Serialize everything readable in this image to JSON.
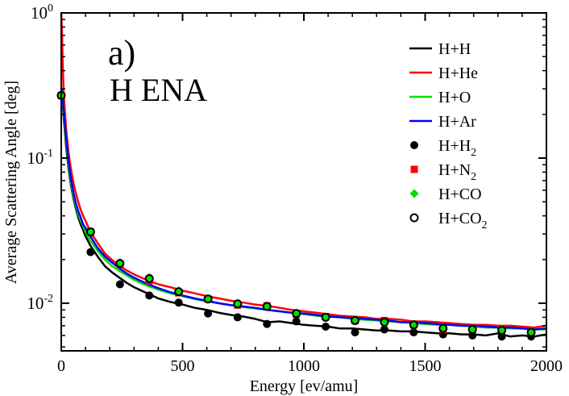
{
  "chart_data": {
    "type": "line",
    "title": "",
    "panel_label": "a)",
    "annotation": "H ENA",
    "xlabel": "Energy [ev/amu]",
    "ylabel": "Average Scattering Angle [deg]",
    "xlim": [
      0,
      2000
    ],
    "ylim": [
      0.0047,
      1.0
    ],
    "yscale": "log",
    "xticks": [
      0,
      500,
      1000,
      1500,
      2000
    ],
    "xtick_labels": [
      "0",
      "500",
      "1000",
      "1500",
      "2000"
    ],
    "yticks": [
      1.0,
      0.1,
      0.01
    ],
    "ytick_labels": [
      {
        "base": "10",
        "exp": "0"
      },
      {
        "base": "10",
        "exp": "-1"
      },
      {
        "base": "10",
        "exp": "-2"
      }
    ],
    "grid": false,
    "legend_position": "top-right",
    "series": [
      {
        "name": "H+H",
        "label_main": "H+H",
        "label_sub": "",
        "label_tail": "",
        "kind": "line",
        "color": "#000000",
        "x": [
          0,
          5,
          10,
          20,
          30,
          40,
          50,
          60,
          70,
          80,
          90,
          100,
          120,
          150,
          180,
          210,
          240,
          270,
          300,
          350,
          400,
          450,
          500,
          550,
          600,
          650,
          700,
          750,
          800,
          850,
          900,
          950,
          1000,
          1050,
          1100,
          1150,
          1200,
          1250,
          1300,
          1350,
          1400,
          1450,
          1500,
          1550,
          1600,
          1650,
          1700,
          1750,
          1800,
          1850,
          1900,
          1950,
          2000
        ],
        "y": [
          0.3,
          0.27,
          0.19,
          0.12,
          0.085,
          0.065,
          0.053,
          0.045,
          0.039,
          0.035,
          0.032,
          0.029,
          0.025,
          0.021,
          0.018,
          0.0163,
          0.015,
          0.0138,
          0.0129,
          0.0118,
          0.0108,
          0.0102,
          0.0098,
          0.0093,
          0.009,
          0.0086,
          0.0083,
          0.0081,
          0.0078,
          0.0074,
          0.0075,
          0.0073,
          0.0071,
          0.007,
          0.0069,
          0.0067,
          0.0067,
          0.0066,
          0.0065,
          0.0065,
          0.0064,
          0.0064,
          0.0063,
          0.0062,
          0.0062,
          0.0061,
          0.0061,
          0.006,
          0.0062,
          0.0059,
          0.006,
          0.0059,
          0.0061
        ]
      },
      {
        "name": "H+He",
        "label_main": "H+He",
        "label_sub": "",
        "label_tail": "",
        "kind": "line",
        "color": "#ff0000",
        "x": [
          0,
          3,
          6,
          10,
          20,
          30,
          40,
          50,
          60,
          70,
          80,
          90,
          100,
          120,
          150,
          180,
          210,
          240,
          270,
          300,
          350,
          400,
          450,
          500,
          550,
          600,
          650,
          700,
          750,
          800,
          850,
          900,
          950,
          1000,
          1050,
          1100,
          1150,
          1200,
          1250,
          1300,
          1350,
          1400,
          1450,
          1500,
          1550,
          1600,
          1650,
          1700,
          1750,
          1800,
          1850,
          1900,
          1950,
          2000
        ],
        "y": [
          1.0,
          0.75,
          0.45,
          0.28,
          0.16,
          0.11,
          0.084,
          0.068,
          0.057,
          0.05,
          0.044,
          0.04,
          0.037,
          0.031,
          0.026,
          0.022,
          0.0198,
          0.0182,
          0.0168,
          0.0158,
          0.0145,
          0.0135,
          0.0129,
          0.0122,
          0.0117,
          0.0112,
          0.0108,
          0.0104,
          0.0101,
          0.0098,
          0.0096,
          0.0093,
          0.009,
          0.0088,
          0.0086,
          0.0084,
          0.0082,
          0.0081,
          0.008,
          0.0078,
          0.0078,
          0.0077,
          0.0075,
          0.0075,
          0.0074,
          0.0073,
          0.0072,
          0.0071,
          0.0071,
          0.007,
          0.007,
          0.0069,
          0.0068,
          0.007
        ]
      },
      {
        "name": "H+O",
        "label_main": "H+O",
        "label_sub": "",
        "label_tail": "",
        "kind": "line",
        "color": "#00e000",
        "x": [
          0,
          5,
          10,
          20,
          30,
          40,
          50,
          60,
          70,
          80,
          90,
          100,
          120,
          150,
          180,
          210,
          240,
          270,
          300,
          350,
          400,
          450,
          500,
          550,
          600,
          650,
          700,
          750,
          800,
          850,
          900,
          950,
          1000,
          1050,
          1100,
          1150,
          1200,
          1250,
          1300,
          1350,
          1400,
          1450,
          1500,
          1550,
          1600,
          1650,
          1700,
          1750,
          1800,
          1850,
          1900,
          1950,
          2000
        ],
        "y": [
          0.3,
          0.28,
          0.2,
          0.13,
          0.09,
          0.068,
          0.055,
          0.047,
          0.041,
          0.037,
          0.034,
          0.031,
          0.027,
          0.023,
          0.02,
          0.018,
          0.0167,
          0.0155,
          0.0145,
          0.0133,
          0.0124,
          0.0117,
          0.0112,
          0.0107,
          0.0103,
          0.01,
          0.0097,
          0.0094,
          0.0092,
          0.009,
          0.0088,
          0.0086,
          0.0084,
          0.0082,
          0.0081,
          0.008,
          0.0078,
          0.0077,
          0.0076,
          0.0075,
          0.0074,
          0.0073,
          0.0072,
          0.0071,
          0.0071,
          0.007,
          0.0069,
          0.0068,
          0.0068,
          0.0067,
          0.0067,
          0.0066,
          0.0066
        ]
      },
      {
        "name": "H+Ar",
        "label_main": "H+Ar",
        "label_sub": "",
        "label_tail": "",
        "kind": "line",
        "color": "#0000ff",
        "x": [
          0,
          5,
          10,
          20,
          30,
          40,
          50,
          60,
          70,
          80,
          90,
          100,
          120,
          150,
          180,
          210,
          240,
          270,
          300,
          350,
          400,
          450,
          500,
          550,
          600,
          650,
          700,
          750,
          800,
          850,
          900,
          950,
          1000,
          1050,
          1100,
          1150,
          1200,
          1250,
          1300,
          1350,
          1400,
          1450,
          1500,
          1550,
          1600,
          1650,
          1700,
          1750,
          1800,
          1850,
          1900,
          1950,
          2000
        ],
        "y": [
          0.3,
          0.28,
          0.21,
          0.14,
          0.095,
          0.072,
          0.058,
          0.049,
          0.043,
          0.039,
          0.035,
          0.033,
          0.029,
          0.024,
          0.021,
          0.019,
          0.0174,
          0.016,
          0.015,
          0.0137,
          0.0127,
          0.0119,
          0.0113,
          0.0108,
          0.0104,
          0.01,
          0.0097,
          0.0095,
          0.0093,
          0.009,
          0.0088,
          0.0086,
          0.0085,
          0.0083,
          0.0081,
          0.008,
          0.0079,
          0.0078,
          0.0077,
          0.0076,
          0.0074,
          0.0074,
          0.0073,
          0.0072,
          0.0071,
          0.007,
          0.007,
          0.0069,
          0.0068,
          0.0068,
          0.0067,
          0.0066,
          0.0067
        ]
      },
      {
        "name": "H+H2",
        "label_main": "H+H",
        "label_sub": "2",
        "label_tail": "",
        "kind": "marker",
        "marker": "filled-circle",
        "color": "#000000",
        "x": [
          0,
          121,
          242,
          363,
          484,
          605,
          727,
          848,
          969,
          1090,
          1211,
          1332,
          1453,
          1574,
          1695,
          1816,
          1937
        ],
        "y": [
          0.27,
          0.0225,
          0.0135,
          0.0113,
          0.0101,
          0.0085,
          0.008,
          0.0072,
          0.0075,
          0.0069,
          0.0063,
          0.0066,
          0.0063,
          0.0061,
          0.006,
          0.0059,
          0.0059
        ]
      },
      {
        "name": "H+N2",
        "label_main": "H+N",
        "label_sub": "2",
        "label_tail": "",
        "kind": "marker",
        "marker": "filled-square",
        "color": "#ff0000",
        "x": [
          0,
          121,
          242,
          363,
          484,
          605,
          727,
          848,
          969,
          1090,
          1211,
          1332,
          1453,
          1574,
          1695,
          1816,
          1937
        ],
        "y": [
          0.27,
          0.031,
          0.0185,
          0.0143,
          0.0118,
          0.0107,
          0.0097,
          0.0096,
          0.0084,
          0.0081,
          0.0076,
          0.0076,
          0.0071,
          0.0066,
          0.0066,
          0.0066,
          0.0063
        ]
      },
      {
        "name": "H+CO",
        "label_main": "H+CO",
        "label_sub": "",
        "label_tail": "",
        "kind": "marker",
        "marker": "filled-diamond",
        "color": "#00e000",
        "x": [
          0,
          121,
          242,
          363,
          484,
          605,
          727,
          848,
          969,
          1090,
          1211,
          1332,
          1453,
          1574,
          1695,
          1816,
          1937
        ],
        "y": [
          0.27,
          0.031,
          0.019,
          0.015,
          0.0122,
          0.0108,
          0.01,
          0.0096,
          0.0085,
          0.008,
          0.0077,
          0.0074,
          0.007,
          0.0068,
          0.0066,
          0.0066,
          0.0064
        ]
      },
      {
        "name": "H+CO2",
        "label_main": "H+CO",
        "label_sub": "2",
        "label_tail": "",
        "kind": "marker",
        "marker": "open-circle",
        "color": "#000000",
        "x": [
          0,
          121,
          242,
          363,
          484,
          605,
          727,
          848,
          969,
          1090,
          1211,
          1332,
          1453,
          1574,
          1695,
          1816,
          1937
        ],
        "y": [
          0.27,
          0.031,
          0.0188,
          0.0148,
          0.012,
          0.0107,
          0.0099,
          0.0095,
          0.0085,
          0.008,
          0.0076,
          0.0074,
          0.0071,
          0.0067,
          0.0066,
          0.0065,
          0.0063
        ]
      }
    ]
  }
}
